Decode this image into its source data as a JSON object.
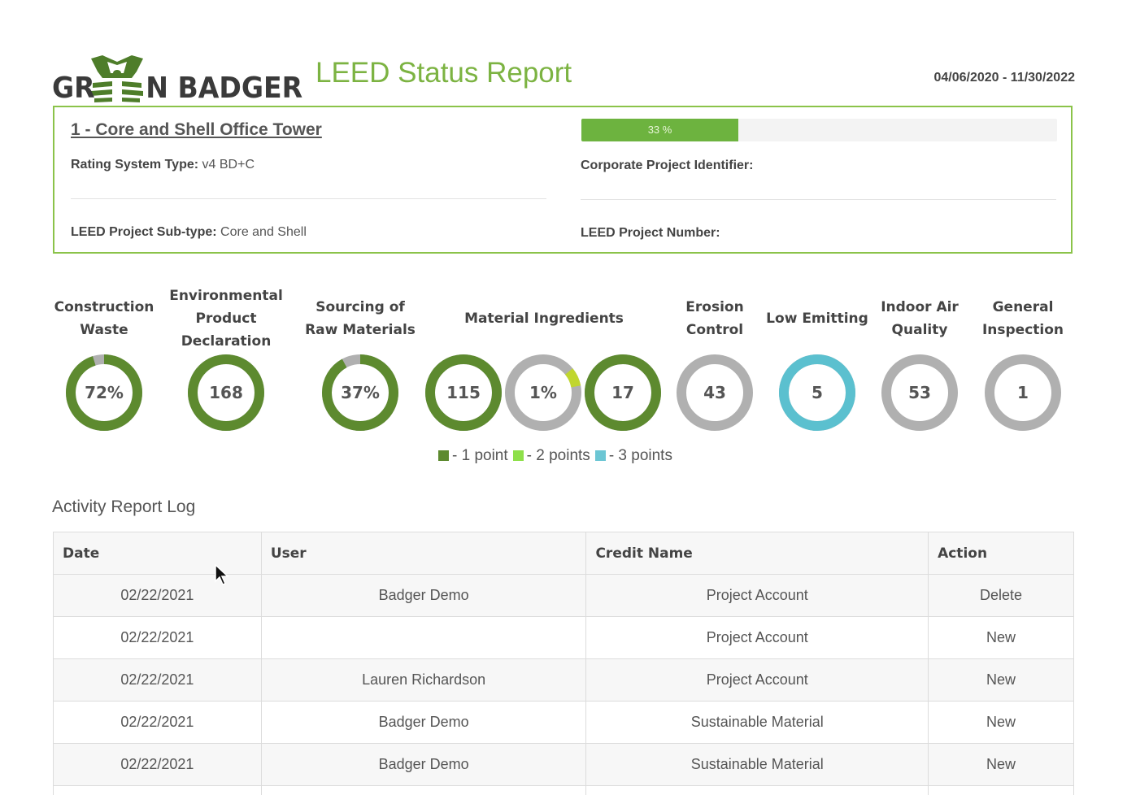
{
  "brand": {
    "logo_text_left": "GR",
    "logo_text_right": "N BADGER",
    "logo_icon": "badger-head-icon"
  },
  "header": {
    "title": "LEED Status Report",
    "date_range": "04/06/2020 - 11/30/2022"
  },
  "project": {
    "name": "1 - Core and Shell Office Tower",
    "progress_percent": 33,
    "progress_label": "33 %",
    "rating_system_label": "Rating System Type:",
    "rating_system_value": "v4 BD+C",
    "subtype_label": "LEED Project Sub-type:",
    "subtype_value": "Core and Shell",
    "corporate_id_label": "Corporate Project Identifier:",
    "corporate_id_value": "",
    "project_number_label": "LEED Project Number:",
    "project_number_value": ""
  },
  "credits": [
    {
      "label_lines": [
        "Construction",
        "Waste"
      ],
      "donuts": [
        {
          "text": "72%",
          "fraction": 0.95,
          "color": "#5d8a2f",
          "accent_color": null
        }
      ]
    },
    {
      "label_lines": [
        "Environmental",
        "Product",
        "Declaration"
      ],
      "donuts": [
        {
          "text": "168",
          "fraction": 1.0,
          "color": "#5d8a2f",
          "accent_color": null
        }
      ]
    },
    {
      "label_lines": [
        "Sourcing of",
        "Raw Materials"
      ],
      "donuts": [
        {
          "text": "37%",
          "fraction": 0.92,
          "color": "#5d8a2f",
          "accent_color": null
        }
      ]
    },
    {
      "label_lines": [
        "Material Ingredients"
      ],
      "donuts": [
        {
          "text": "115",
          "fraction": 1.0,
          "color": "#5d8a2f",
          "accent_color": null
        },
        {
          "text": "1%",
          "fraction": 0.0,
          "color": "#5d8a2f",
          "accent_color": "#c0d62f"
        },
        {
          "text": "17",
          "fraction": 1.0,
          "color": "#5d8a2f",
          "accent_color": null
        }
      ]
    },
    {
      "label_lines": [
        "Erosion",
        "Control"
      ],
      "donuts": [
        {
          "text": "43",
          "fraction": 0.0,
          "color": "#5d8a2f",
          "accent_color": null
        }
      ]
    },
    {
      "label_lines": [
        "Low Emitting"
      ],
      "donuts": [
        {
          "text": "5",
          "fraction": 1.0,
          "color": "#5bc0cf",
          "accent_color": null
        }
      ]
    },
    {
      "label_lines": [
        "Indoor Air",
        "Quality"
      ],
      "donuts": [
        {
          "text": "53",
          "fraction": 0.0,
          "color": "#5d8a2f",
          "accent_color": null
        }
      ]
    },
    {
      "label_lines": [
        "General",
        "Inspection"
      ],
      "donuts": [
        {
          "text": "1",
          "fraction": 0.0,
          "color": "#5d8a2f",
          "accent_color": null
        }
      ]
    }
  ],
  "legend": [
    {
      "color": "#5d8a2f",
      "label": "- 1 point"
    },
    {
      "color": "#8ee04a",
      "label": "- 2 points"
    },
    {
      "color": "#6cc6d4",
      "label": "- 3 points"
    }
  ],
  "activity_log": {
    "title": "Activity Report Log",
    "columns": [
      "Date",
      "User",
      "Credit Name",
      "Action"
    ],
    "rows": [
      [
        "02/22/2021",
        "Badger Demo",
        "Project Account",
        "Delete"
      ],
      [
        "02/22/2021",
        "",
        "Project Account",
        "New"
      ],
      [
        "02/22/2021",
        "Lauren Richardson",
        "Project Account",
        "New"
      ],
      [
        "02/22/2021",
        "Badger Demo",
        "Sustainable Material",
        "New"
      ],
      [
        "02/22/2021",
        "Badger Demo",
        "Sustainable Material",
        "New"
      ],
      [
        "",
        "",
        "",
        ""
      ]
    ]
  },
  "colors": {
    "brand_green": "#7cb342",
    "dark_green": "#5d8a2f",
    "ring_gray": "#b0b0b0",
    "teal": "#5bc0cf"
  },
  "cursor_icon": "mouse-pointer-icon"
}
